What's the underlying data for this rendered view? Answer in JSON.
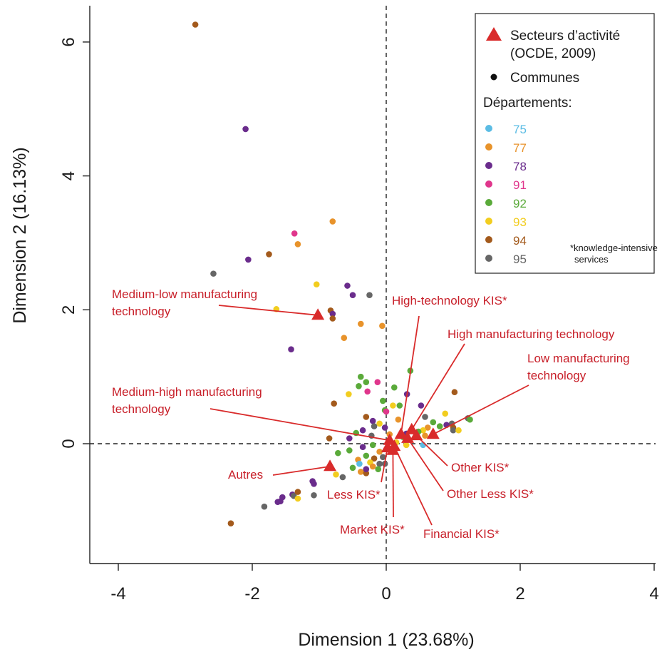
{
  "chart_data": {
    "type": "scatter",
    "xlabel": "Dimension 1 (23.68%)",
    "ylabel": "Dimension  2 (16.13%)",
    "xlim": [
      -4.4,
      4.0
    ],
    "ylim": [
      -1.8,
      6.6
    ],
    "x_ticks": [
      "-4",
      "-2",
      "0",
      "2",
      "4"
    ],
    "x_tick_values": [
      -4,
      -2,
      0,
      2,
      4
    ],
    "y_ticks": [
      "0",
      "2",
      "4",
      "6"
    ],
    "y_tick_values": [
      0,
      2,
      4,
      6
    ],
    "reference_lines": {
      "x": 0,
      "y": 0,
      "style": "dashed"
    },
    "legend": {
      "placement": "top-right",
      "sectors_label": "Secteurs d’activité",
      "sectors_label_2": "(OCDE, 2009)",
      "communes_label": "Communes",
      "departments_title": "Départements:",
      "note_line1": "*knowledge-intensive",
      "note_line2": "services"
    },
    "departments": [
      {
        "code": "75",
        "color": "#5bbce4"
      },
      {
        "code": "77",
        "color": "#e8932b"
      },
      {
        "code": "78",
        "color": "#6a2c8c"
      },
      {
        "code": "91",
        "color": "#e0368c"
      },
      {
        "code": "92",
        "color": "#5aaa3a"
      },
      {
        "code": "93",
        "color": "#f2cd1f"
      },
      {
        "code": "94",
        "color": "#a35a1c"
      },
      {
        "code": "95",
        "color": "#666666"
      }
    ],
    "sectors_color": "#d92b2b",
    "sectors": [
      {
        "name": "Medium-low manufacturing technology",
        "label_lines": [
          "Medium-low manufacturing",
          "technology"
        ],
        "x": -1.02,
        "y": 1.92
      },
      {
        "name": "High-technology KIS*",
        "label_lines": [
          "High-technology KIS*"
        ],
        "x": 0.22,
        "y": 0.14
      },
      {
        "name": "High manufacturing technology",
        "label_lines": [
          "High manufacturing technology"
        ],
        "x": 0.38,
        "y": 0.21
      },
      {
        "name": "Low manufacturing technology",
        "label_lines": [
          "Low manufacturing",
          "technology"
        ],
        "x": 0.7,
        "y": 0.14
      },
      {
        "name": "Medium-high manufacturing technology",
        "label_lines": [
          "Medium-high manufacturing",
          "technology"
        ],
        "x": 0.05,
        "y": 0.05
      },
      {
        "name": "Other KIS*",
        "label_lines": [
          "Other KIS*"
        ],
        "x": 0.45,
        "y": 0.12
      },
      {
        "name": "Other Less KIS*",
        "label_lines": [
          "Other Less KIS*"
        ],
        "x": 0.32,
        "y": 0.08
      },
      {
        "name": "Financial KIS*",
        "label_lines": [
          "Financial KIS*"
        ],
        "x": 0.12,
        "y": -0.04
      },
      {
        "name": "Market KIS*",
        "label_lines": [
          "Market KIS*"
        ],
        "x": 0.1,
        "y": -0.1
      },
      {
        "name": "Less KIS*",
        "label_lines": [
          "Less KIS*"
        ],
        "x": 0.02,
        "y": -0.06
      },
      {
        "name": "Autres",
        "label_lines": [
          "Autres"
        ],
        "x": -0.84,
        "y": -0.34
      }
    ],
    "communes": [
      {
        "dept": "94",
        "x": -2.85,
        "y": 6.26
      },
      {
        "dept": "78",
        "x": -2.1,
        "y": 4.7
      },
      {
        "dept": "77",
        "x": -0.8,
        "y": 3.32
      },
      {
        "dept": "91",
        "x": -1.37,
        "y": 3.14
      },
      {
        "dept": "77",
        "x": -1.32,
        "y": 2.98
      },
      {
        "dept": "94",
        "x": -1.75,
        "y": 2.83
      },
      {
        "dept": "78",
        "x": -2.06,
        "y": 2.75
      },
      {
        "dept": "95",
        "x": -2.58,
        "y": 2.54
      },
      {
        "dept": "93",
        "x": -1.04,
        "y": 2.38
      },
      {
        "dept": "78",
        "x": -0.58,
        "y": 2.36
      },
      {
        "dept": "78",
        "x": -0.5,
        "y": 2.22
      },
      {
        "dept": "95",
        "x": -0.25,
        "y": 2.22
      },
      {
        "dept": "93",
        "x": -1.64,
        "y": 2.01
      },
      {
        "dept": "94",
        "x": -0.83,
        "y": 1.99
      },
      {
        "dept": "78",
        "x": -0.8,
        "y": 1.94
      },
      {
        "dept": "94",
        "x": -0.8,
        "y": 1.87
      },
      {
        "dept": "77",
        "x": -0.38,
        "y": 1.79
      },
      {
        "dept": "77",
        "x": -0.06,
        "y": 1.76
      },
      {
        "dept": "77",
        "x": -0.63,
        "y": 1.58
      },
      {
        "dept": "78",
        "x": -1.42,
        "y": 1.41
      },
      {
        "dept": "92",
        "x": 0.36,
        "y": 1.09
      },
      {
        "dept": "92",
        "x": -0.38,
        "y": 1.0
      },
      {
        "dept": "92",
        "x": -0.3,
        "y": 0.92
      },
      {
        "dept": "91",
        "x": -0.13,
        "y": 0.92
      },
      {
        "dept": "92",
        "x": -0.41,
        "y": 0.86
      },
      {
        "dept": "92",
        "x": 0.12,
        "y": 0.84
      },
      {
        "dept": "91",
        "x": -0.28,
        "y": 0.78
      },
      {
        "dept": "94",
        "x": 1.02,
        "y": 0.77
      },
      {
        "dept": "93",
        "x": -0.56,
        "y": 0.74
      },
      {
        "dept": "78",
        "x": 0.31,
        "y": 0.74
      },
      {
        "dept": "92",
        "x": -0.05,
        "y": 0.64
      },
      {
        "dept": "94",
        "x": -0.78,
        "y": 0.6
      },
      {
        "dept": "92",
        "x": 0.2,
        "y": 0.57
      },
      {
        "dept": "93",
        "x": 0.1,
        "y": 0.57
      },
      {
        "dept": "78",
        "x": 0.52,
        "y": 0.57
      },
      {
        "dept": "92",
        "x": -0.02,
        "y": 0.5
      },
      {
        "dept": "93",
        "x": 0.88,
        "y": 0.45
      },
      {
        "dept": "95",
        "x": 0.58,
        "y": 0.4
      },
      {
        "dept": "94",
        "x": -0.3,
        "y": 0.4
      },
      {
        "dept": "91",
        "x": 0.0,
        "y": 0.48
      },
      {
        "dept": "95",
        "x": 1.22,
        "y": 0.38
      },
      {
        "dept": "92",
        "x": 1.25,
        "y": 0.36
      },
      {
        "dept": "77",
        "x": 0.18,
        "y": 0.36
      },
      {
        "dept": "78",
        "x": -0.2,
        "y": 0.34
      },
      {
        "dept": "93",
        "x": -0.1,
        "y": 0.3
      },
      {
        "dept": "92",
        "x": 0.7,
        "y": 0.32
      },
      {
        "dept": "95",
        "x": 0.98,
        "y": 0.3
      },
      {
        "dept": "94",
        "x": 1.0,
        "y": 0.24
      },
      {
        "dept": "78",
        "x": 0.9,
        "y": 0.28
      },
      {
        "dept": "92",
        "x": 0.8,
        "y": 0.26
      },
      {
        "dept": "77",
        "x": 0.62,
        "y": 0.24
      },
      {
        "dept": "93",
        "x": 0.55,
        "y": 0.2
      },
      {
        "dept": "95",
        "x": 1.0,
        "y": 0.2
      },
      {
        "dept": "93",
        "x": 1.08,
        "y": 0.2
      },
      {
        "dept": "92",
        "x": 0.48,
        "y": 0.18
      },
      {
        "dept": "77",
        "x": 0.58,
        "y": 0.12
      },
      {
        "dept": "78",
        "x": 0.3,
        "y": 0.15
      },
      {
        "dept": "92",
        "x": 0.25,
        "y": 0.1
      },
      {
        "dept": "78",
        "x": -0.02,
        "y": 0.24
      },
      {
        "dept": "95",
        "x": -0.18,
        "y": 0.26
      },
      {
        "dept": "78",
        "x": -0.35,
        "y": 0.2
      },
      {
        "dept": "92",
        "x": -0.45,
        "y": 0.16
      },
      {
        "dept": "78",
        "x": -0.55,
        "y": 0.08
      },
      {
        "dept": "94",
        "x": -0.85,
        "y": 0.08
      },
      {
        "dept": "95",
        "x": -0.22,
        "y": 0.12
      },
      {
        "dept": "77",
        "x": 0.05,
        "y": 0.14
      },
      {
        "dept": "93",
        "x": 0.15,
        "y": 0.02
      },
      {
        "dept": "75",
        "x": 0.55,
        "y": -0.02
      },
      {
        "dept": "93",
        "x": 0.3,
        "y": -0.02
      },
      {
        "dept": "92",
        "x": -0.2,
        "y": -0.02
      },
      {
        "dept": "78",
        "x": -0.35,
        "y": -0.05
      },
      {
        "dept": "92",
        "x": -0.55,
        "y": -0.1
      },
      {
        "dept": "92",
        "x": -0.72,
        "y": -0.14
      },
      {
        "dept": "92",
        "x": -0.3,
        "y": -0.18
      },
      {
        "dept": "77",
        "x": -0.1,
        "y": -0.12
      },
      {
        "dept": "95",
        "x": -0.05,
        "y": -0.2
      },
      {
        "dept": "94",
        "x": -0.18,
        "y": -0.22
      },
      {
        "dept": "77",
        "x": -0.42,
        "y": -0.24
      },
      {
        "dept": "93",
        "x": -0.24,
        "y": -0.28
      },
      {
        "dept": "95",
        "x": -0.1,
        "y": -0.3
      },
      {
        "dept": "92",
        "x": -0.12,
        "y": -0.38
      },
      {
        "dept": "75",
        "x": -0.4,
        "y": -0.3
      },
      {
        "dept": "77",
        "x": -0.2,
        "y": -0.34
      },
      {
        "dept": "77",
        "x": -0.38,
        "y": -0.42
      },
      {
        "dept": "92",
        "x": -0.5,
        "y": -0.36
      },
      {
        "dept": "94",
        "x": -0.3,
        "y": -0.44
      },
      {
        "dept": "78",
        "x": -0.3,
        "y": -0.38
      },
      {
        "dept": "95",
        "x": -0.02,
        "y": -0.3
      },
      {
        "dept": "93",
        "x": -0.75,
        "y": -0.46
      },
      {
        "dept": "95",
        "x": -0.65,
        "y": -0.5
      },
      {
        "dept": "78",
        "x": -1.1,
        "y": -0.56
      },
      {
        "dept": "78",
        "x": -1.08,
        "y": -0.6
      },
      {
        "dept": "78",
        "x": -1.4,
        "y": -0.76
      },
      {
        "dept": "95",
        "x": -1.38,
        "y": -0.78
      },
      {
        "dept": "95",
        "x": -1.08,
        "y": -0.77
      },
      {
        "dept": "94",
        "x": -1.32,
        "y": -0.72
      },
      {
        "dept": "93",
        "x": -1.32,
        "y": -0.82
      },
      {
        "dept": "78",
        "x": -1.55,
        "y": -0.8
      },
      {
        "dept": "78",
        "x": -1.58,
        "y": -0.86
      },
      {
        "dept": "78",
        "x": -1.62,
        "y": -0.87
      },
      {
        "dept": "95",
        "x": -1.82,
        "y": -0.94
      },
      {
        "dept": "94",
        "x": -2.32,
        "y": -1.19
      }
    ]
  }
}
